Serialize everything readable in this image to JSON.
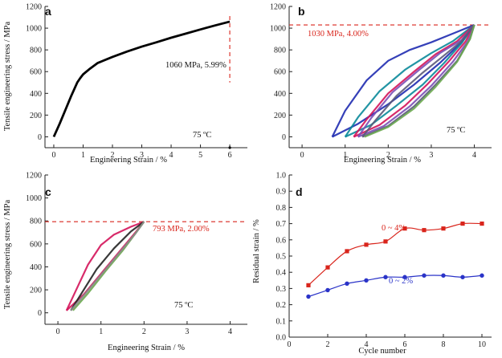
{
  "chart_data": [
    {
      "id": "a",
      "type": "line",
      "panel_letter": "a",
      "xlabel": "Engineering Strain / %",
      "ylabel": "Tensile engineering stress / MPa",
      "xlim": [
        -0.3,
        6.6
      ],
      "ylim": [
        -100,
        1200
      ],
      "xticks": [
        0,
        1,
        2,
        3,
        4,
        5,
        6
      ],
      "yticks": [
        0,
        200,
        400,
        600,
        800,
        1000,
        1200
      ],
      "series": [
        {
          "color": "#000000",
          "x": [
            0,
            0.2,
            0.4,
            0.6,
            0.8,
            0.9,
            1.0,
            1.2,
            1.5,
            2.0,
            2.5,
            3.0,
            3.5,
            4.0,
            4.5,
            5.0,
            5.5,
            6.0
          ],
          "y": [
            0,
            120,
            250,
            380,
            500,
            540,
            575,
            620,
            680,
            735,
            785,
            830,
            870,
            912,
            950,
            988,
            1025,
            1060
          ]
        }
      ],
      "marker_point": {
        "x": 6.0,
        "y": -100
      },
      "annotation_text": "1060 MPa, 5.99%",
      "guide_x": 6.0,
      "temperature_label": "75 ºC"
    },
    {
      "id": "b",
      "type": "line",
      "panel_letter": "b",
      "xlabel": "Engineering Strain / %",
      "ylabel": "",
      "xlim": [
        -0.3,
        4.4
      ],
      "ylim": [
        -100,
        1200
      ],
      "xticks": [
        0,
        1,
        2,
        3,
        4
      ],
      "yticks": [
        0,
        200,
        400,
        600,
        800,
        1000,
        1200
      ],
      "series": [
        {
          "color": "#1f2bb0",
          "x": [
            0.7,
            1.0,
            1.5,
            2.0,
            2.5,
            3.0,
            3.5,
            4.0
          ],
          "y": [
            0,
            240,
            520,
            700,
            800,
            870,
            950,
            1030
          ],
          "upper": true
        },
        {
          "color": "#1f2bb0",
          "x": [
            0.7,
            1.3,
            2.0,
            2.6,
            3.2,
            3.7,
            4.0
          ],
          "y": [
            0,
            120,
            300,
            480,
            680,
            870,
            1030
          ]
        },
        {
          "color": "#0a8a9a",
          "x": [
            1.0,
            1.3,
            1.8,
            2.4,
            3.0,
            3.5,
            4.0
          ],
          "y": [
            0,
            180,
            420,
            620,
            770,
            880,
            1030
          ],
          "upper": true
        },
        {
          "color": "#0a8a9a",
          "x": [
            1.0,
            1.6,
            2.2,
            2.8,
            3.3,
            3.7,
            4.0
          ],
          "y": [
            0,
            110,
            290,
            480,
            680,
            860,
            1030
          ]
        },
        {
          "color": "#d4145a",
          "x": [
            1.2,
            1.5,
            2.0,
            2.6,
            3.1,
            3.6,
            4.0
          ],
          "y": [
            0,
            160,
            400,
            600,
            760,
            880,
            1030
          ],
          "upper": true
        },
        {
          "color": "#d4145a",
          "x": [
            1.2,
            1.8,
            2.4,
            2.9,
            3.4,
            3.8,
            4.0
          ],
          "y": [
            0,
            110,
            290,
            480,
            690,
            880,
            1030
          ]
        },
        {
          "color": "#7b4fb6",
          "x": [
            1.3,
            1.6,
            2.1,
            2.7,
            3.2,
            3.7,
            4.0
          ],
          "y": [
            0,
            170,
            410,
            610,
            770,
            890,
            1030
          ],
          "upper": true
        },
        {
          "color": "#7b4fb6",
          "x": [
            1.3,
            1.9,
            2.5,
            3.0,
            3.5,
            3.85,
            4.0
          ],
          "y": [
            0,
            100,
            280,
            470,
            690,
            880,
            1030
          ]
        },
        {
          "color": "#5a5a7a",
          "x": [
            1.4,
            1.7,
            2.2,
            2.8,
            3.3,
            3.7,
            4.0
          ],
          "y": [
            0,
            150,
            380,
            590,
            750,
            880,
            1030
          ],
          "upper": true
        },
        {
          "color": "#5a5a7a",
          "x": [
            1.4,
            2.0,
            2.6,
            3.1,
            3.6,
            3.9,
            4.0
          ],
          "y": [
            0,
            100,
            280,
            480,
            700,
            900,
            1030
          ]
        },
        {
          "color": "#6aa84f",
          "x": [
            1.45,
            2.0,
            2.6,
            3.1,
            3.6,
            3.9,
            4.0
          ],
          "y": [
            0,
            90,
            260,
            460,
            690,
            900,
            1030
          ]
        }
      ],
      "reference_y": 1030,
      "annotation_text": "1030 MPa, 4.00%",
      "temperature_label": "75 ºC"
    },
    {
      "id": "c",
      "type": "line",
      "panel_letter": "c",
      "xlabel": "Engineering Strain / %",
      "ylabel": "Tensile engineering stress / MPa",
      "xlim": [
        -0.3,
        4.4
      ],
      "ylim": [
        -100,
        1200
      ],
      "xticks": [
        0,
        1,
        2,
        3,
        4
      ],
      "yticks": [
        0,
        200,
        400,
        600,
        800,
        1000,
        1200
      ],
      "series": [
        {
          "color": "#d4145a",
          "x": [
            0.2,
            0.4,
            0.7,
            1.0,
            1.3,
            1.7,
            2.0
          ],
          "y": [
            20,
            180,
            420,
            590,
            680,
            750,
            793
          ],
          "upper": true
        },
        {
          "color": "#d4145a",
          "x": [
            0.2,
            0.6,
            1.0,
            1.4,
            1.8,
            2.0
          ],
          "y": [
            20,
            160,
            340,
            520,
            700,
            793
          ]
        },
        {
          "color": "#222222",
          "x": [
            0.3,
            0.6,
            0.9,
            1.3,
            1.7,
            2.0
          ],
          "y": [
            20,
            200,
            380,
            560,
            710,
            793
          ]
        },
        {
          "color": "#6aa84f",
          "x": [
            0.35,
            0.7,
            1.1,
            1.5,
            1.8,
            2.0
          ],
          "y": [
            20,
            170,
            360,
            540,
            690,
            793
          ]
        },
        {
          "color": "#8a8a8a",
          "x": [
            0.3,
            0.6,
            1.0,
            1.4,
            1.8,
            2.0
          ],
          "y": [
            20,
            150,
            330,
            510,
            690,
            793
          ]
        }
      ],
      "reference_y": 793,
      "annotation_text": "793 MPa, 2.00%",
      "temperature_label": "75 ºC"
    },
    {
      "id": "d",
      "type": "line",
      "panel_letter": "d",
      "xlabel": "Cycle number",
      "ylabel": "Residual strain / %",
      "xlim": [
        0,
        10.5
      ],
      "ylim": [
        0.0,
        1.0
      ],
      "xticks": [
        0,
        2,
        4,
        6,
        8,
        10
      ],
      "yticks": [
        0.0,
        0.1,
        0.2,
        0.3,
        0.4,
        0.5,
        0.6,
        0.7,
        0.8,
        0.9,
        1.0
      ],
      "series": [
        {
          "name": "0 ~ 4%",
          "color": "#d9251c",
          "marker": "square",
          "x": [
            1,
            2,
            3,
            4,
            5,
            6,
            7,
            8,
            9,
            10
          ],
          "y": [
            0.32,
            0.43,
            0.53,
            0.57,
            0.59,
            0.67,
            0.66,
            0.67,
            0.7,
            0.7
          ]
        },
        {
          "name": "0 ~ 2%",
          "color": "#2a33c8",
          "marker": "circle",
          "x": [
            1,
            2,
            3,
            4,
            5,
            6,
            7,
            8,
            9,
            10
          ],
          "y": [
            0.25,
            0.29,
            0.33,
            0.35,
            0.37,
            0.37,
            0.38,
            0.38,
            0.37,
            0.38
          ]
        }
      ]
    }
  ]
}
